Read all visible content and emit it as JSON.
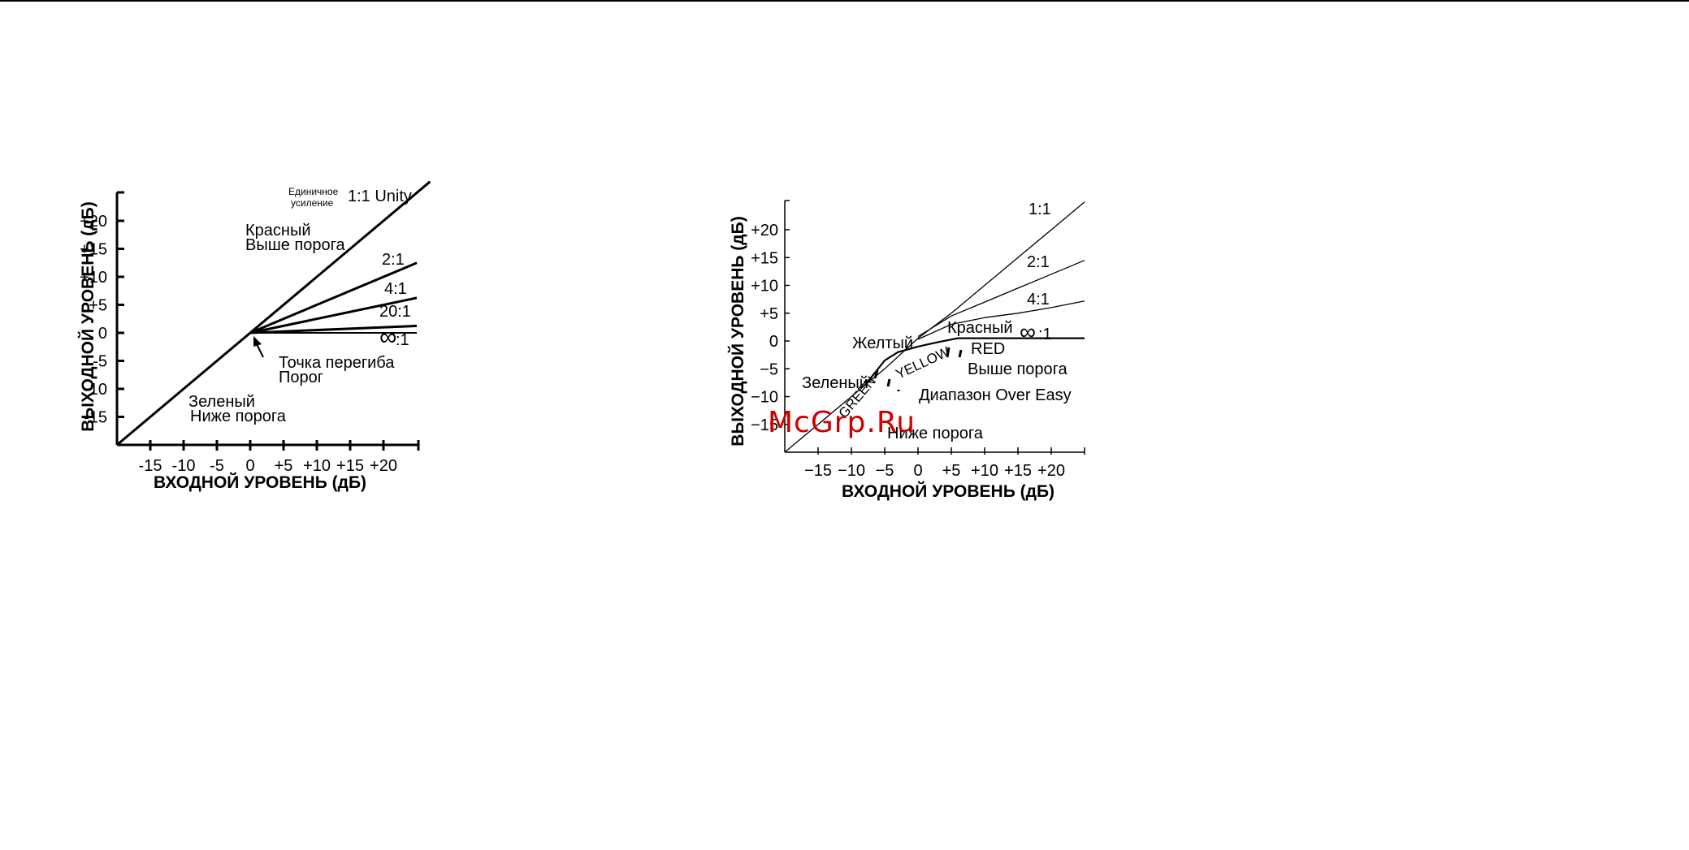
{
  "watermark": "McGrp.Ru",
  "colors": {
    "ink": "#000000",
    "watermark": "#cc0000",
    "background": "#ffffff"
  },
  "chart_data": [
    {
      "type": "line",
      "xlabel": "ВХОДНОЙ УРОВЕНЬ (дБ)",
      "ylabel": "ВЫХОДНОЙ УРОВЕНЬ (дБ)",
      "xlim": [
        -20,
        25
      ],
      "ylim": [
        -20,
        25
      ],
      "x_ticks": [
        -15,
        -10,
        -5,
        0,
        5,
        10,
        15,
        20
      ],
      "x_tick_labels": [
        "-15",
        "-10",
        "-5",
        "0",
        "+5",
        "+10",
        "+15",
        "+20"
      ],
      "y_ticks": [
        20,
        15,
        10,
        5,
        0,
        -5,
        -10,
        -15
      ],
      "y_tick_labels": [
        "+20",
        "+15",
        "+10",
        "+5",
        "0",
        "-5",
        "-10",
        "-15"
      ],
      "series": [
        {
          "name": "1:1 Unity",
          "points": [
            [
              -20,
              -20
            ],
            [
              27,
              27
            ]
          ]
        },
        {
          "name": "2:1",
          "points": [
            [
              0,
              0
            ],
            [
              25,
              12.5
            ]
          ]
        },
        {
          "name": "4:1",
          "points": [
            [
              0,
              0
            ],
            [
              25,
              6.25
            ]
          ]
        },
        {
          "name": "20:1",
          "points": [
            [
              0,
              0
            ],
            [
              25,
              1.25
            ]
          ]
        },
        {
          "name": "∞:1",
          "points": [
            [
              0,
              0
            ],
            [
              25,
              0
            ]
          ]
        }
      ],
      "labels": {
        "unity_small_1": "Единичное",
        "unity_small_2": "усиление",
        "unity": "1:1  Unity",
        "r2": "2:1",
        "r4": "4:1",
        "r20": "20:1",
        "inf_sym": "∞",
        "inf_ratio": ":1",
        "red_1": "Красный",
        "red_2": "Выше порога",
        "knee_1": "Точка перегиба",
        "knee_2": "Порог",
        "green_1": "Зеленый",
        "green_2": "Ниже порога"
      }
    },
    {
      "type": "line",
      "xlabel": "ВХОДНОЙ УРОВЕНЬ (дБ)",
      "ylabel": "ВЫХОДНОЙ УРОВЕНЬ (дБ)",
      "xlim": [
        -20,
        25
      ],
      "ylim": [
        -20,
        25
      ],
      "x_ticks": [
        -15,
        -10,
        -5,
        0,
        5,
        10,
        15,
        20
      ],
      "x_tick_labels": [
        "−15",
        "−10",
        "−5",
        "0",
        "+5",
        "+10",
        "+15",
        "+20"
      ],
      "y_ticks": [
        20,
        15,
        10,
        5,
        0,
        -5,
        -10,
        -15
      ],
      "y_tick_labels": [
        "+20",
        "+15",
        "+10",
        "+5",
        "0",
        "−5",
        "−10",
        "−15"
      ],
      "series": [
        {
          "name": "1:1",
          "points": [
            [
              -20,
              -20
            ],
            [
              -8,
              -8
            ],
            [
              -5,
              -5
            ],
            [
              0,
              0.5
            ],
            [
              5,
              5
            ],
            [
              10,
              10
            ],
            [
              15,
              15
            ],
            [
              25,
              25
            ]
          ]
        },
        {
          "name": "2:1",
          "points": [
            [
              0,
              0.8
            ],
            [
              5,
              4.5
            ],
            [
              10,
              7
            ],
            [
              15,
              9.5
            ],
            [
              20,
              12
            ],
            [
              25,
              14.5
            ]
          ]
        },
        {
          "name": "4:1",
          "points": [
            [
              0,
              0.3
            ],
            [
              5,
              3
            ],
            [
              10,
              4.2
            ],
            [
              15,
              5
            ],
            [
              20,
              6
            ],
            [
              25,
              7.2
            ]
          ]
        },
        {
          "name": "∞:1",
          "points": [
            [
              -8,
              -8
            ],
            [
              -5,
              -3.5
            ],
            [
              -3,
              -2
            ],
            [
              0,
              -1
            ],
            [
              3,
              -0.2
            ],
            [
              6,
              0.5
            ],
            [
              10,
              0.5
            ],
            [
              15,
              0.5
            ],
            [
              25,
              0.5
            ]
          ]
        }
      ],
      "labels": {
        "r1": "1:1",
        "r2": "2:1",
        "r4": "4:1",
        "inf_sym": "∞",
        "inf_ratio": ":1",
        "yellow": "Желтый",
        "red": "Красный",
        "red_en": "RED",
        "green": "Зеленый",
        "above": "Выше порога",
        "range": "Диапазон Over Easy",
        "below": "Ниже порога",
        "green_en": "GREEN",
        "yellow_en": "YELLOW"
      }
    }
  ]
}
